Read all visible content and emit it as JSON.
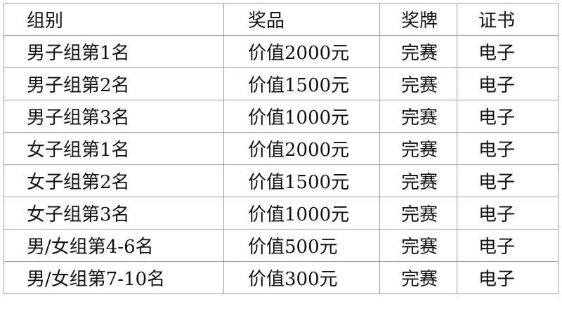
{
  "table": {
    "headers": [
      "组别",
      "奖品",
      "奖牌",
      "证书"
    ],
    "rows": [
      [
        "男子组第1名",
        "价值2000元",
        "完赛",
        "电子"
      ],
      [
        "男子组第2名",
        "价值1500元",
        "完赛",
        "电子"
      ],
      [
        "男子组第3名",
        "价值1000元",
        "完赛",
        "电子"
      ],
      [
        "女子组第1名",
        "价值2000元",
        "完赛",
        "电子"
      ],
      [
        "女子组第2名",
        "价值1500元",
        "完赛",
        "电子"
      ],
      [
        "女子组第3名",
        "价值1000元",
        "完赛",
        "电子"
      ],
      [
        "男/女组第4-6名",
        "价值500元",
        "完赛",
        "电子"
      ],
      [
        "男/女组第7-10名",
        "价值300元",
        "完赛",
        "电子"
      ]
    ]
  }
}
